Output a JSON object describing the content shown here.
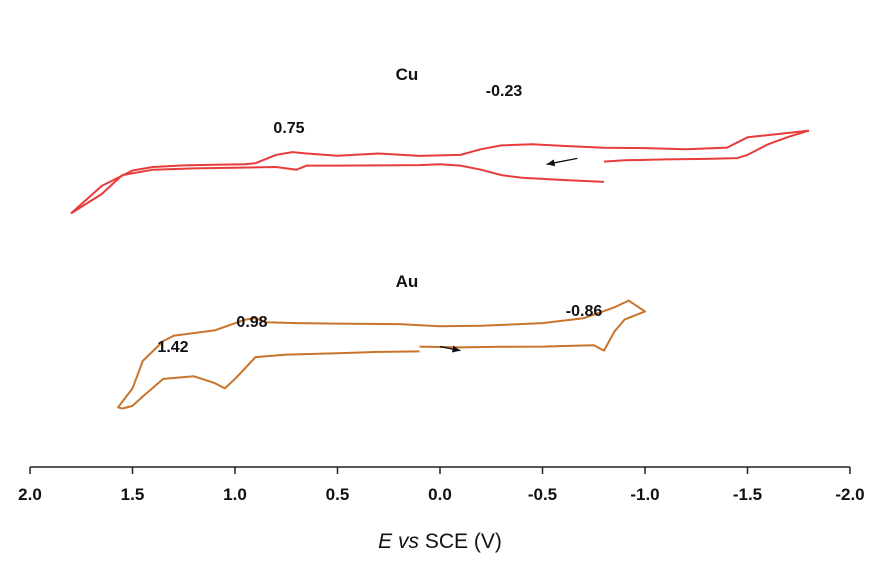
{
  "chart_data": {
    "type": "line",
    "xlabel_parts": {
      "italic": "E vs",
      "plain": " SCE (V)"
    },
    "xlim": [
      2.0,
      -2.0
    ],
    "x_reversed": true,
    "y_axis_shown": false,
    "grid": false,
    "ticks": [
      2.0,
      1.5,
      1.0,
      0.5,
      0.0,
      -0.5,
      -1.0,
      -1.5,
      -2.0
    ],
    "tick_labels": [
      "2.0",
      "1.5",
      "1.0",
      "0.5",
      "0.0",
      "-0.5",
      "-1.0",
      "-1.5",
      "-2.0"
    ],
    "series": [
      {
        "name": "Cu",
        "color": "#e83c3c",
        "segments": [
          {
            "x": [
              -0.8,
              -0.6,
              -0.4,
              -0.3,
              -0.2,
              -0.1,
              0.0,
              0.1,
              0.3,
              0.5,
              0.65,
              0.7,
              0.75,
              0.8,
              1.0,
              1.2,
              1.4,
              1.55,
              1.65,
              1.8
            ],
            "y": [
              8.45,
              8.52,
              8.6,
              8.7,
              8.9,
              9.05,
              9.1,
              9.07,
              9.06,
              9.05,
              9.05,
              8.9,
              8.95,
              9.0,
              8.97,
              8.95,
              8.9,
              8.7,
              8.0,
              7.28
            ]
          },
          {
            "x": [
              1.8,
              1.65,
              1.5,
              1.4,
              1.25,
              1.1,
              0.95,
              0.9,
              0.8,
              0.72,
              0.65,
              0.5,
              0.3,
              0.1,
              -0.1,
              -0.2,
              -0.3,
              -0.45,
              -0.6,
              -0.8,
              -1.0,
              -1.2,
              -1.4,
              -1.5,
              -1.6,
              -1.8
            ],
            "y": [
              7.28,
              8.3,
              8.87,
              9.0,
              9.06,
              9.08,
              9.1,
              9.14,
              9.45,
              9.55,
              9.5,
              9.42,
              9.5,
              9.41,
              9.45,
              9.66,
              9.8,
              9.84,
              9.78,
              9.71,
              9.7,
              9.66,
              9.72,
              10.1,
              10.18,
              10.35
            ]
          },
          {
            "x": [
              -1.8,
              -1.7,
              -1.6,
              -1.5,
              -1.45,
              -1.3,
              -1.1,
              -0.9,
              -0.8
            ],
            "y": [
              10.35,
              10.12,
              9.84,
              9.45,
              9.33,
              9.3,
              9.28,
              9.25,
              9.2
            ]
          }
        ]
      },
      {
        "name": "Au",
        "color": "#c8742a",
        "segments": [
          {
            "x": [
              0.1,
              -0.1,
              -0.3,
              -0.5,
              -0.65,
              -0.75,
              -0.8,
              -0.85,
              -0.9,
              -1.0,
              -0.92,
              -0.85,
              -0.7,
              -0.5,
              -0.2,
              0.0,
              0.2,
              0.5,
              0.7,
              0.85,
              0.9,
              0.95,
              1.1,
              1.3,
              1.35,
              1.45,
              1.5,
              1.57,
              1.55
            ],
            "y": [
              2.35,
              2.32,
              2.34,
              2.35,
              2.38,
              2.4,
              2.2,
              2.9,
              3.35,
              3.65,
              4.05,
              3.8,
              3.4,
              3.22,
              3.12,
              3.1,
              3.18,
              3.2,
              3.22,
              3.25,
              3.4,
              3.35,
              2.95,
              2.75,
              2.55,
              1.82,
              0.8,
              0.1,
              0.05
            ]
          },
          {
            "x": [
              1.55,
              1.5,
              1.45,
              1.35,
              1.2,
              1.1,
              1.05,
              1.0,
              0.9,
              0.75,
              0.5,
              0.3,
              0.1
            ],
            "y": [
              0.05,
              0.15,
              0.5,
              1.15,
              1.25,
              1.0,
              0.8,
              1.15,
              1.96,
              2.05,
              2.1,
              2.15,
              2.17
            ]
          }
        ]
      }
    ],
    "annotations": [
      {
        "text": "Cu",
        "type": "series"
      },
      {
        "text": "-0.23",
        "type": "peak"
      },
      {
        "text": "0.75",
        "type": "peak"
      },
      {
        "text": "Au",
        "type": "series"
      },
      {
        "text": "0.98",
        "type": "peak"
      },
      {
        "text": "-0.86",
        "type": "peak"
      },
      {
        "text": "1.42",
        "type": "peak"
      }
    ],
    "arrows": [
      {
        "series": "Cu",
        "from": [
          -0.67,
          9.32
        ],
        "to": [
          -0.52,
          9.1
        ]
      },
      {
        "series": "Au",
        "from": [
          0.0,
          2.35
        ],
        "to": [
          -0.1,
          2.2
        ]
      }
    ]
  }
}
